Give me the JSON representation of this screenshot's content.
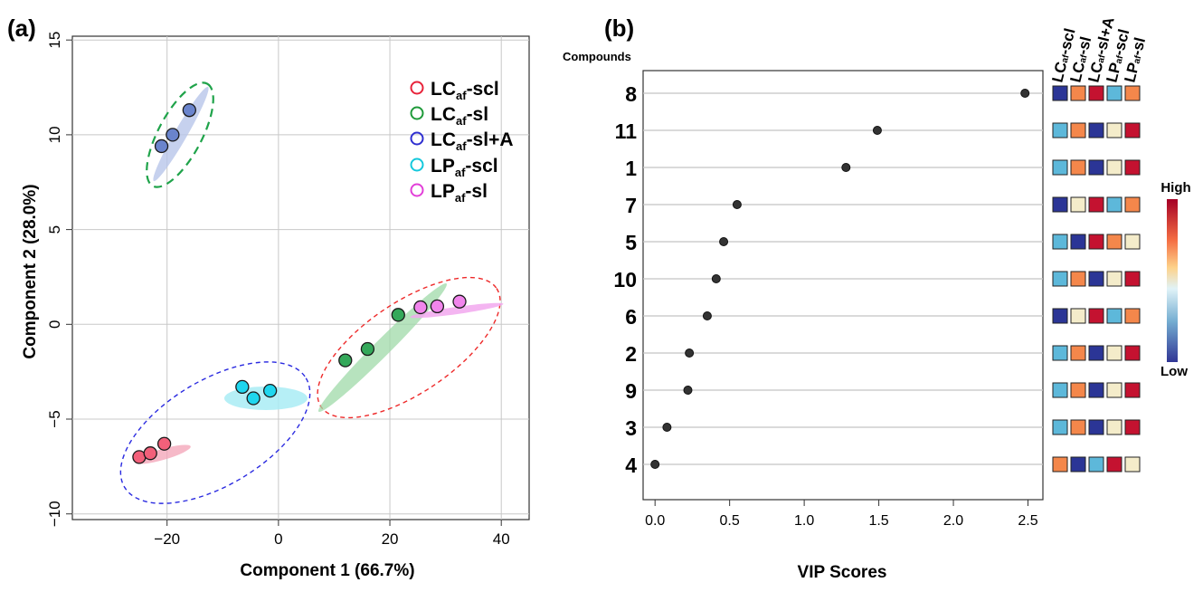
{
  "panel_a": {
    "label": "(a)",
    "chart_data": {
      "type": "scatter",
      "xlabel": "Component 1 (66.7%)",
      "ylabel": "Component 2 (28.0%)",
      "xlim": [
        -37,
        45
      ],
      "ylim": [
        -10.3,
        15.2
      ],
      "xticks": [
        -20,
        0,
        20,
        40
      ],
      "yticks": [
        -10,
        -5,
        0,
        5,
        10,
        15
      ],
      "grid": true,
      "legend_position": "top-right",
      "series": [
        {
          "name": "LC_af-scl",
          "legend": {
            "main": "LC",
            "sub": "af",
            "tail": "-scl"
          },
          "ring": "#e8233a",
          "fill": "#f2607a",
          "points": [
            [
              -25,
              -7
            ],
            [
              -23,
              -6.8
            ],
            [
              -20.5,
              -6.3
            ]
          ],
          "ellipse": {
            "color": "#f3a1b5",
            "style": "filled"
          }
        },
        {
          "name": "LC_af-sl",
          "legend": {
            "main": "LC",
            "sub": "af",
            "tail": "-sl"
          },
          "ring": "#1f9a3a",
          "fill": "#34a85a",
          "points": [
            [
              12,
              -1.9
            ],
            [
              16,
              -1.3
            ],
            [
              21.5,
              0.5
            ]
          ],
          "ellipse": {
            "color": "#9fd9a8",
            "style": "filled"
          }
        },
        {
          "name": "LC_af-sl+A",
          "legend": {
            "main": "LC",
            "sub": "af",
            "tail": "-sl+A"
          },
          "ring": "#2f2fd0",
          "fill": "#6a84cc",
          "points": [
            [
              -21,
              9.4
            ],
            [
              -19,
              10
            ],
            [
              -16,
              11.3
            ]
          ],
          "ellipse": {
            "color": "#b8c6ea",
            "style": "filled"
          }
        },
        {
          "name": "LP_af-scl",
          "legend": {
            "main": "LP",
            "sub": "af",
            "tail": "-scl"
          },
          "ring": "#14c8dc",
          "fill": "#1fd6ee",
          "points": [
            [
              -6.5,
              -3.3
            ],
            [
              -4.5,
              -3.9
            ],
            [
              -1.5,
              -3.5
            ]
          ],
          "ellipse": {
            "color": "#a9ecf5",
            "style": "filled"
          }
        },
        {
          "name": "LP_af-sl",
          "legend": {
            "main": "LP",
            "sub": "af",
            "tail": "-sl"
          },
          "ring": "#e23fd8",
          "fill": "#f185ec",
          "points": [
            [
              25.5,
              0.9
            ],
            [
              28.5,
              0.95
            ],
            [
              32.5,
              1.2
            ]
          ],
          "ellipse": {
            "color": "#f2a8ef",
            "style": "filled"
          }
        }
      ],
      "group_ellipses": [
        {
          "color": "#1fa34a",
          "style": "dashed",
          "around": "LC_af-sl+A"
        },
        {
          "color": "#2a2ae0",
          "style": "dashed",
          "around": "LC_af-scl + LP_af-scl"
        },
        {
          "color": "#ee2a2a",
          "style": "dashed",
          "around": "LC_af-sl + LP_af-sl"
        }
      ]
    }
  },
  "panel_b": {
    "label": "(b)",
    "compounds_header": "Compounds",
    "chart_data": {
      "type": "scatter",
      "xlabel": "VIP Scores",
      "xlim": [
        -0.08,
        2.6
      ],
      "xticks": [
        "0.0",
        "0.5",
        "1.0",
        "1.5",
        "2.0",
        "2.5"
      ],
      "compounds": [
        "8",
        "11",
        "1",
        "7",
        "5",
        "10",
        "6",
        "2",
        "9",
        "3",
        "4"
      ],
      "vip": [
        2.48,
        1.49,
        1.28,
        0.55,
        0.46,
        0.41,
        0.35,
        0.23,
        0.22,
        0.08,
        0.0
      ],
      "heatmap_columns": [
        {
          "main": "LC",
          "sub": "af",
          "tail": "-scl"
        },
        {
          "main": "LC",
          "sub": "af",
          "tail": "-sl"
        },
        {
          "main": "LC",
          "sub": "af",
          "tail": "-sl+A"
        },
        {
          "main": "LP",
          "sub": "af",
          "tail": "-scl"
        },
        {
          "main": "LP",
          "sub": "af",
          "tail": "-sl"
        }
      ],
      "heatmap_levels": [
        [
          1,
          4,
          5,
          2,
          4
        ],
        [
          2,
          4,
          1,
          3,
          5
        ],
        [
          2,
          4,
          1,
          3,
          5
        ],
        [
          1,
          3,
          5,
          2,
          4
        ],
        [
          2,
          1,
          5,
          4,
          3
        ],
        [
          2,
          4,
          1,
          3,
          5
        ],
        [
          1,
          3,
          5,
          2,
          4
        ],
        [
          2,
          4,
          1,
          3,
          5
        ],
        [
          2,
          4,
          1,
          3,
          5
        ],
        [
          2,
          4,
          1,
          3,
          5
        ],
        [
          4,
          1,
          2,
          5,
          3
        ]
      ],
      "level_colors": {
        "1": "#2b3596",
        "2": "#5db8da",
        "3": "#f4ecca",
        "4": "#f4874b",
        "5": "#c41230"
      },
      "colorbar": {
        "high_label": "High",
        "low_label": "Low",
        "stops": [
          "#a50026",
          "#f46d43",
          "#fdd28a",
          "#e0f3f8",
          "#74add1",
          "#313695"
        ]
      }
    }
  }
}
